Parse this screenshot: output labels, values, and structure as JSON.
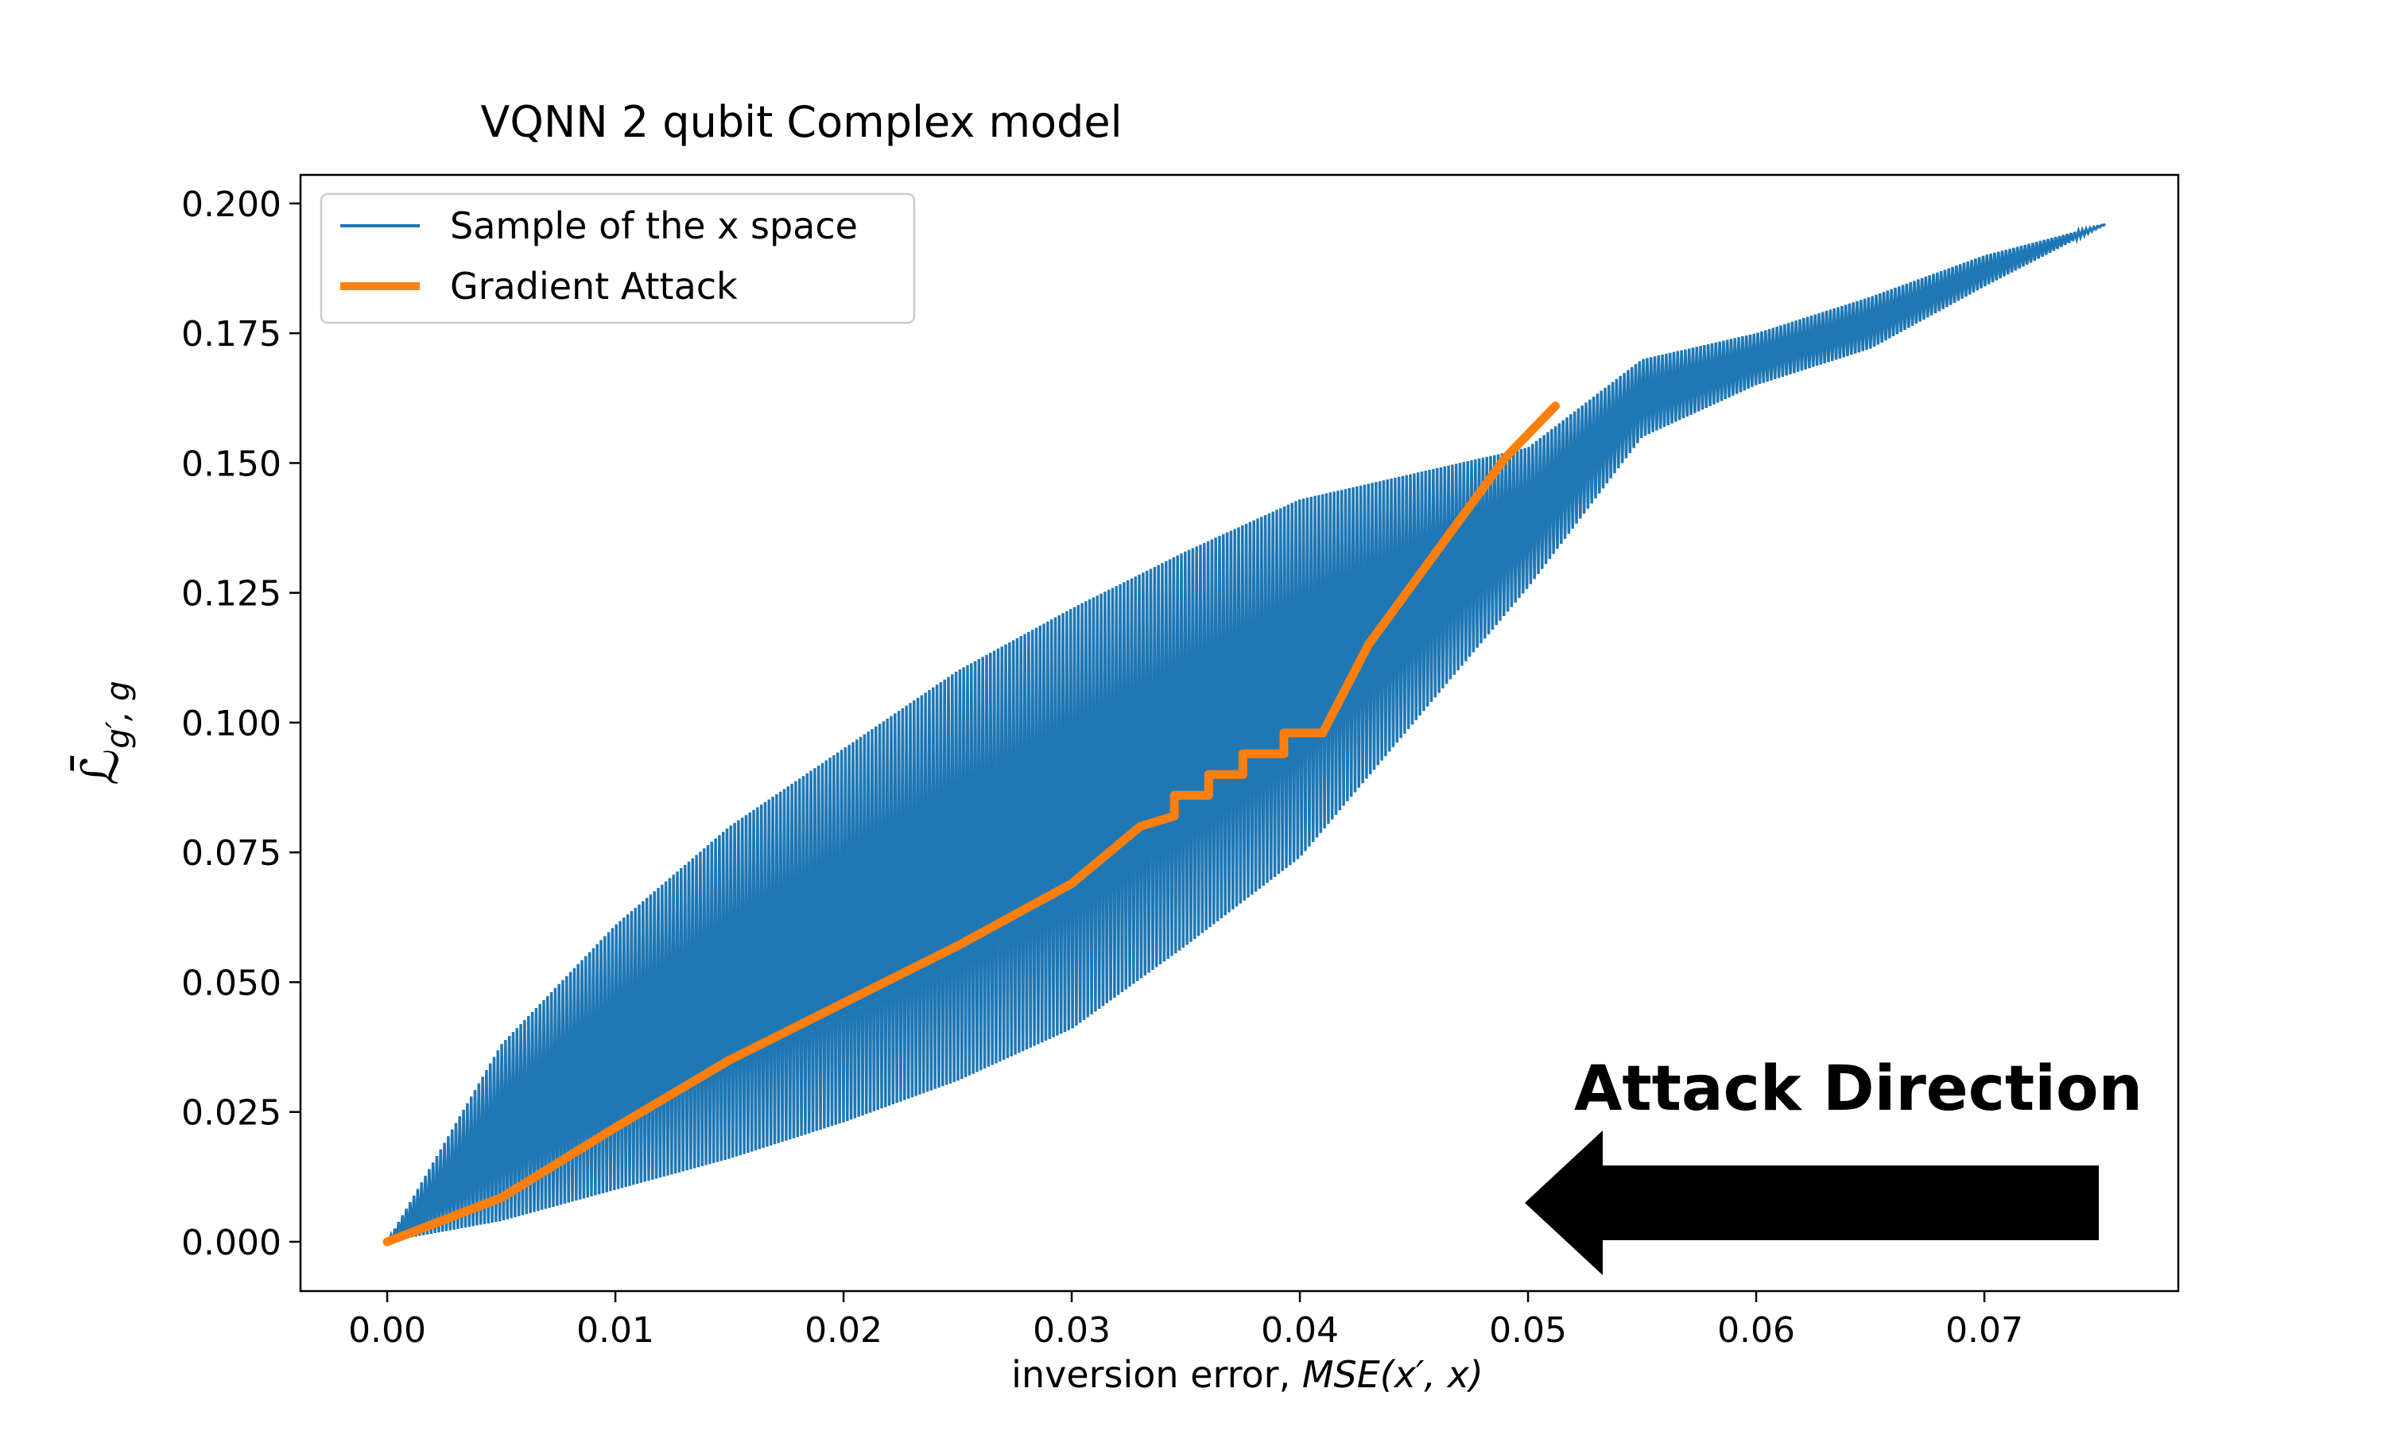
{
  "chart_data": {
    "type": "line",
    "title": "VQNN 2 qubit Complex model",
    "xlabel_text": "inversion error, ",
    "xlabel_math": "MSE(x′, x)",
    "ylabel": "ℒ̄",
    "ylabel_subscript": "g′, g",
    "xlim": [
      -0.0038,
      0.0785
    ],
    "ylim": [
      -0.0095,
      0.2055
    ],
    "x_ticks": [
      0.0,
      0.01,
      0.02,
      0.03,
      0.04,
      0.05,
      0.06,
      0.07
    ],
    "x_tick_labels": [
      "0.00",
      "0.01",
      "0.02",
      "0.03",
      "0.04",
      "0.05",
      "0.06",
      "0.07"
    ],
    "y_ticks": [
      0.0,
      0.025,
      0.05,
      0.075,
      0.1,
      0.125,
      0.15,
      0.175,
      0.2
    ],
    "y_tick_labels": [
      "0.000",
      "0.025",
      "0.050",
      "0.075",
      "0.100",
      "0.125",
      "0.150",
      "0.175",
      "0.200"
    ],
    "grid": false,
    "legend_position": "top-left",
    "series": [
      {
        "name": "Sample of the x space",
        "color": "#1f77b4",
        "style": "oscillating band",
        "upper_envelope": [
          [
            0.0,
            0.0
          ],
          [
            0.005,
            0.038
          ],
          [
            0.01,
            0.061
          ],
          [
            0.015,
            0.08
          ],
          [
            0.02,
            0.095
          ],
          [
            0.025,
            0.11
          ],
          [
            0.03,
            0.122
          ],
          [
            0.035,
            0.133
          ],
          [
            0.04,
            0.143
          ],
          [
            0.045,
            0.148
          ],
          [
            0.05,
            0.153
          ],
          [
            0.055,
            0.17
          ],
          [
            0.06,
            0.175
          ],
          [
            0.065,
            0.182
          ],
          [
            0.07,
            0.19
          ],
          [
            0.0753,
            0.196
          ]
        ],
        "lower_envelope": [
          [
            0.0,
            0.0
          ],
          [
            0.005,
            0.004
          ],
          [
            0.01,
            0.01
          ],
          [
            0.015,
            0.016
          ],
          [
            0.02,
            0.023
          ],
          [
            0.025,
            0.031
          ],
          [
            0.03,
            0.041
          ],
          [
            0.035,
            0.057
          ],
          [
            0.04,
            0.074
          ],
          [
            0.045,
            0.1
          ],
          [
            0.05,
            0.126
          ],
          [
            0.055,
            0.155
          ],
          [
            0.06,
            0.165
          ],
          [
            0.065,
            0.172
          ],
          [
            0.07,
            0.184
          ],
          [
            0.0753,
            0.196
          ]
        ]
      },
      {
        "name": "Gradient Attack",
        "color": "#ff7f0e",
        "points": [
          [
            0.0,
            0.0
          ],
          [
            0.005,
            0.0085
          ],
          [
            0.01,
            0.022
          ],
          [
            0.015,
            0.035
          ],
          [
            0.02,
            0.046
          ],
          [
            0.025,
            0.057
          ],
          [
            0.03,
            0.069
          ],
          [
            0.033,
            0.08
          ],
          [
            0.0345,
            0.082
          ],
          [
            0.0345,
            0.086
          ],
          [
            0.036,
            0.086
          ],
          [
            0.036,
            0.09
          ],
          [
            0.0375,
            0.09
          ],
          [
            0.0375,
            0.094
          ],
          [
            0.0393,
            0.094
          ],
          [
            0.0393,
            0.098
          ],
          [
            0.041,
            0.098
          ],
          [
            0.043,
            0.115
          ],
          [
            0.046,
            0.133
          ],
          [
            0.049,
            0.151
          ],
          [
            0.0512,
            0.161
          ]
        ]
      }
    ],
    "annotation": {
      "text": "Attack Direction",
      "arrow_direction": "left",
      "arrow_color": "#000000"
    }
  }
}
